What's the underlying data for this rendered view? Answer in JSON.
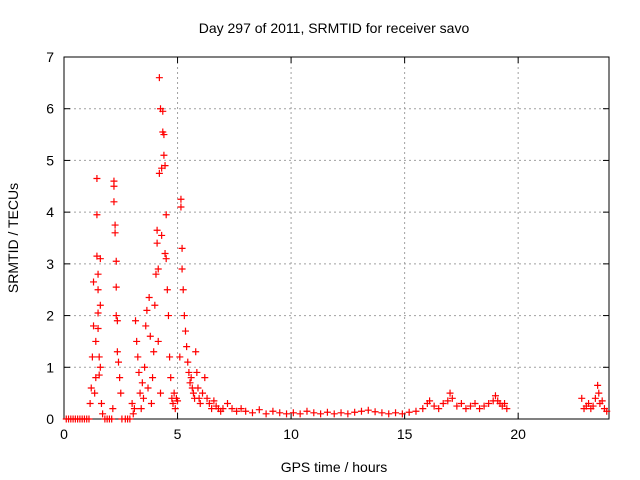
{
  "chart_data": {
    "type": "scatter",
    "title": "Day 297 of 2011, SRMTID for receiver savo",
    "xlabel": "GPS time / hours",
    "ylabel": "SRMTID / TECUs",
    "xlim": [
      0,
      24
    ],
    "ylim": [
      0,
      7
    ],
    "xticks": [
      0,
      5,
      10,
      15,
      20
    ],
    "yticks": [
      0,
      1,
      2,
      3,
      4,
      5,
      6,
      7
    ],
    "grid": true,
    "marker": "+",
    "color": "#ff0000",
    "series": [
      {
        "name": "SRMTID",
        "points": [
          [
            0.1,
            0.0
          ],
          [
            0.2,
            0.0
          ],
          [
            0.3,
            0.0
          ],
          [
            0.4,
            0.0
          ],
          [
            0.5,
            0.0
          ],
          [
            0.6,
            0.0
          ],
          [
            0.7,
            0.0
          ],
          [
            0.8,
            0.0
          ],
          [
            0.9,
            0.0
          ],
          [
            1.0,
            0.0
          ],
          [
            1.1,
            0.0
          ],
          [
            1.15,
            0.3
          ],
          [
            1.2,
            0.6
          ],
          [
            1.25,
            1.2
          ],
          [
            1.3,
            1.8
          ],
          [
            1.3,
            2.65
          ],
          [
            1.35,
            0.5
          ],
          [
            1.4,
            1.5
          ],
          [
            1.4,
            0.8
          ],
          [
            1.45,
            4.65
          ],
          [
            1.45,
            3.95
          ],
          [
            1.45,
            3.15
          ],
          [
            1.5,
            2.8
          ],
          [
            1.5,
            2.5
          ],
          [
            1.5,
            2.05
          ],
          [
            1.5,
            1.75
          ],
          [
            1.55,
            1.2
          ],
          [
            1.55,
            0.85
          ],
          [
            1.6,
            3.1
          ],
          [
            1.6,
            2.2
          ],
          [
            1.6,
            1.0
          ],
          [
            1.65,
            0.3
          ],
          [
            1.7,
            0.1
          ],
          [
            1.8,
            0.0
          ],
          [
            1.9,
            0.0
          ],
          [
            2.0,
            0.0
          ],
          [
            2.1,
            0.0
          ],
          [
            2.15,
            0.2
          ],
          [
            2.2,
            4.6
          ],
          [
            2.2,
            4.5
          ],
          [
            2.2,
            4.2
          ],
          [
            2.25,
            3.75
          ],
          [
            2.25,
            3.6
          ],
          [
            2.3,
            3.05
          ],
          [
            2.3,
            2.55
          ],
          [
            2.3,
            2.0
          ],
          [
            2.35,
            1.9
          ],
          [
            2.35,
            1.3
          ],
          [
            2.4,
            1.1
          ],
          [
            2.45,
            0.8
          ],
          [
            2.5,
            0.5
          ],
          [
            2.55,
            0.0
          ],
          [
            2.7,
            0.0
          ],
          [
            2.8,
            0.0
          ],
          [
            2.9,
            0.0
          ],
          [
            3.0,
            0.3
          ],
          [
            3.05,
            0.1
          ],
          [
            3.1,
            0.2
          ],
          [
            3.15,
            1.9
          ],
          [
            3.2,
            1.5
          ],
          [
            3.25,
            1.2
          ],
          [
            3.3,
            0.9
          ],
          [
            3.35,
            0.5
          ],
          [
            3.4,
            0.2
          ],
          [
            3.45,
            0.7
          ],
          [
            3.5,
            0.4
          ],
          [
            3.55,
            1.0
          ],
          [
            3.6,
            1.8
          ],
          [
            3.65,
            2.1
          ],
          [
            3.7,
            0.6
          ],
          [
            3.75,
            2.35
          ],
          [
            3.8,
            1.6
          ],
          [
            3.85,
            0.3
          ],
          [
            3.9,
            0.8
          ],
          [
            3.95,
            1.3
          ],
          [
            4.0,
            2.2
          ],
          [
            4.05,
            2.8
          ],
          [
            4.1,
            3.4
          ],
          [
            4.1,
            3.65
          ],
          [
            4.15,
            2.9
          ],
          [
            4.15,
            1.5
          ],
          [
            4.2,
            6.6
          ],
          [
            4.2,
            4.75
          ],
          [
            4.25,
            6.0
          ],
          [
            4.25,
            0.5
          ],
          [
            4.3,
            4.85
          ],
          [
            4.3,
            3.55
          ],
          [
            4.35,
            5.95
          ],
          [
            4.35,
            5.55
          ],
          [
            4.4,
            5.5
          ],
          [
            4.4,
            5.1
          ],
          [
            4.45,
            3.2
          ],
          [
            4.45,
            4.9
          ],
          [
            4.5,
            3.1
          ],
          [
            4.5,
            3.95
          ],
          [
            4.55,
            2.5
          ],
          [
            4.6,
            2.0
          ],
          [
            4.65,
            1.2
          ],
          [
            4.7,
            0.8
          ],
          [
            4.75,
            0.4
          ],
          [
            4.8,
            0.3
          ],
          [
            4.85,
            0.5
          ],
          [
            4.9,
            0.2
          ],
          [
            4.95,
            0.4
          ],
          [
            5.0,
            0.35
          ],
          [
            5.1,
            1.2
          ],
          [
            5.15,
            4.25
          ],
          [
            5.15,
            4.1
          ],
          [
            5.2,
            3.3
          ],
          [
            5.2,
            2.9
          ],
          [
            5.25,
            2.5
          ],
          [
            5.3,
            2.0
          ],
          [
            5.35,
            1.7
          ],
          [
            5.4,
            1.4
          ],
          [
            5.45,
            1.1
          ],
          [
            5.5,
            0.9
          ],
          [
            5.55,
            0.7
          ],
          [
            5.6,
            0.8
          ],
          [
            5.65,
            0.6
          ],
          [
            5.7,
            0.5
          ],
          [
            5.75,
            0.4
          ],
          [
            5.8,
            1.3
          ],
          [
            5.85,
            0.9
          ],
          [
            5.9,
            0.6
          ],
          [
            5.95,
            0.4
          ],
          [
            6.0,
            0.3
          ],
          [
            6.1,
            0.5
          ],
          [
            6.2,
            0.8
          ],
          [
            6.3,
            0.4
          ],
          [
            6.4,
            0.3
          ],
          [
            6.5,
            0.2
          ],
          [
            6.6,
            0.35
          ],
          [
            6.7,
            0.25
          ],
          [
            6.8,
            0.2
          ],
          [
            6.9,
            0.15
          ],
          [
            7.0,
            0.2
          ],
          [
            7.2,
            0.3
          ],
          [
            7.4,
            0.2
          ],
          [
            7.6,
            0.15
          ],
          [
            7.8,
            0.2
          ],
          [
            8.0,
            0.15
          ],
          [
            8.3,
            0.12
          ],
          [
            8.6,
            0.18
          ],
          [
            8.9,
            0.1
          ],
          [
            9.2,
            0.15
          ],
          [
            9.5,
            0.12
          ],
          [
            9.8,
            0.1
          ],
          [
            10.1,
            0.12
          ],
          [
            10.4,
            0.1
          ],
          [
            10.7,
            0.15
          ],
          [
            11.0,
            0.12
          ],
          [
            11.3,
            0.1
          ],
          [
            11.6,
            0.13
          ],
          [
            11.9,
            0.1
          ],
          [
            12.2,
            0.12
          ],
          [
            12.5,
            0.1
          ],
          [
            12.8,
            0.13
          ],
          [
            13.1,
            0.15
          ],
          [
            13.4,
            0.17
          ],
          [
            13.7,
            0.14
          ],
          [
            14.0,
            0.12
          ],
          [
            14.3,
            0.1
          ],
          [
            14.6,
            0.12
          ],
          [
            14.9,
            0.1
          ],
          [
            15.2,
            0.13
          ],
          [
            15.5,
            0.15
          ],
          [
            15.8,
            0.2
          ],
          [
            16.0,
            0.3
          ],
          [
            16.1,
            0.35
          ],
          [
            16.3,
            0.25
          ],
          [
            16.5,
            0.2
          ],
          [
            16.7,
            0.3
          ],
          [
            16.9,
            0.35
          ],
          [
            17.0,
            0.5
          ],
          [
            17.1,
            0.4
          ],
          [
            17.3,
            0.25
          ],
          [
            17.5,
            0.3
          ],
          [
            17.7,
            0.2
          ],
          [
            17.9,
            0.25
          ],
          [
            18.1,
            0.3
          ],
          [
            18.3,
            0.2
          ],
          [
            18.5,
            0.25
          ],
          [
            18.7,
            0.3
          ],
          [
            18.9,
            0.35
          ],
          [
            19.0,
            0.45
          ],
          [
            19.1,
            0.35
          ],
          [
            19.2,
            0.3
          ],
          [
            19.3,
            0.25
          ],
          [
            19.4,
            0.3
          ],
          [
            19.5,
            0.2
          ],
          [
            22.8,
            0.4
          ],
          [
            22.9,
            0.2
          ],
          [
            23.0,
            0.25
          ],
          [
            23.1,
            0.3
          ],
          [
            23.2,
            0.2
          ],
          [
            23.3,
            0.25
          ],
          [
            23.4,
            0.4
          ],
          [
            23.5,
            0.65
          ],
          [
            23.55,
            0.5
          ],
          [
            23.6,
            0.3
          ],
          [
            23.7,
            0.35
          ],
          [
            23.8,
            0.2
          ],
          [
            23.9,
            0.15
          ]
        ]
      }
    ]
  }
}
